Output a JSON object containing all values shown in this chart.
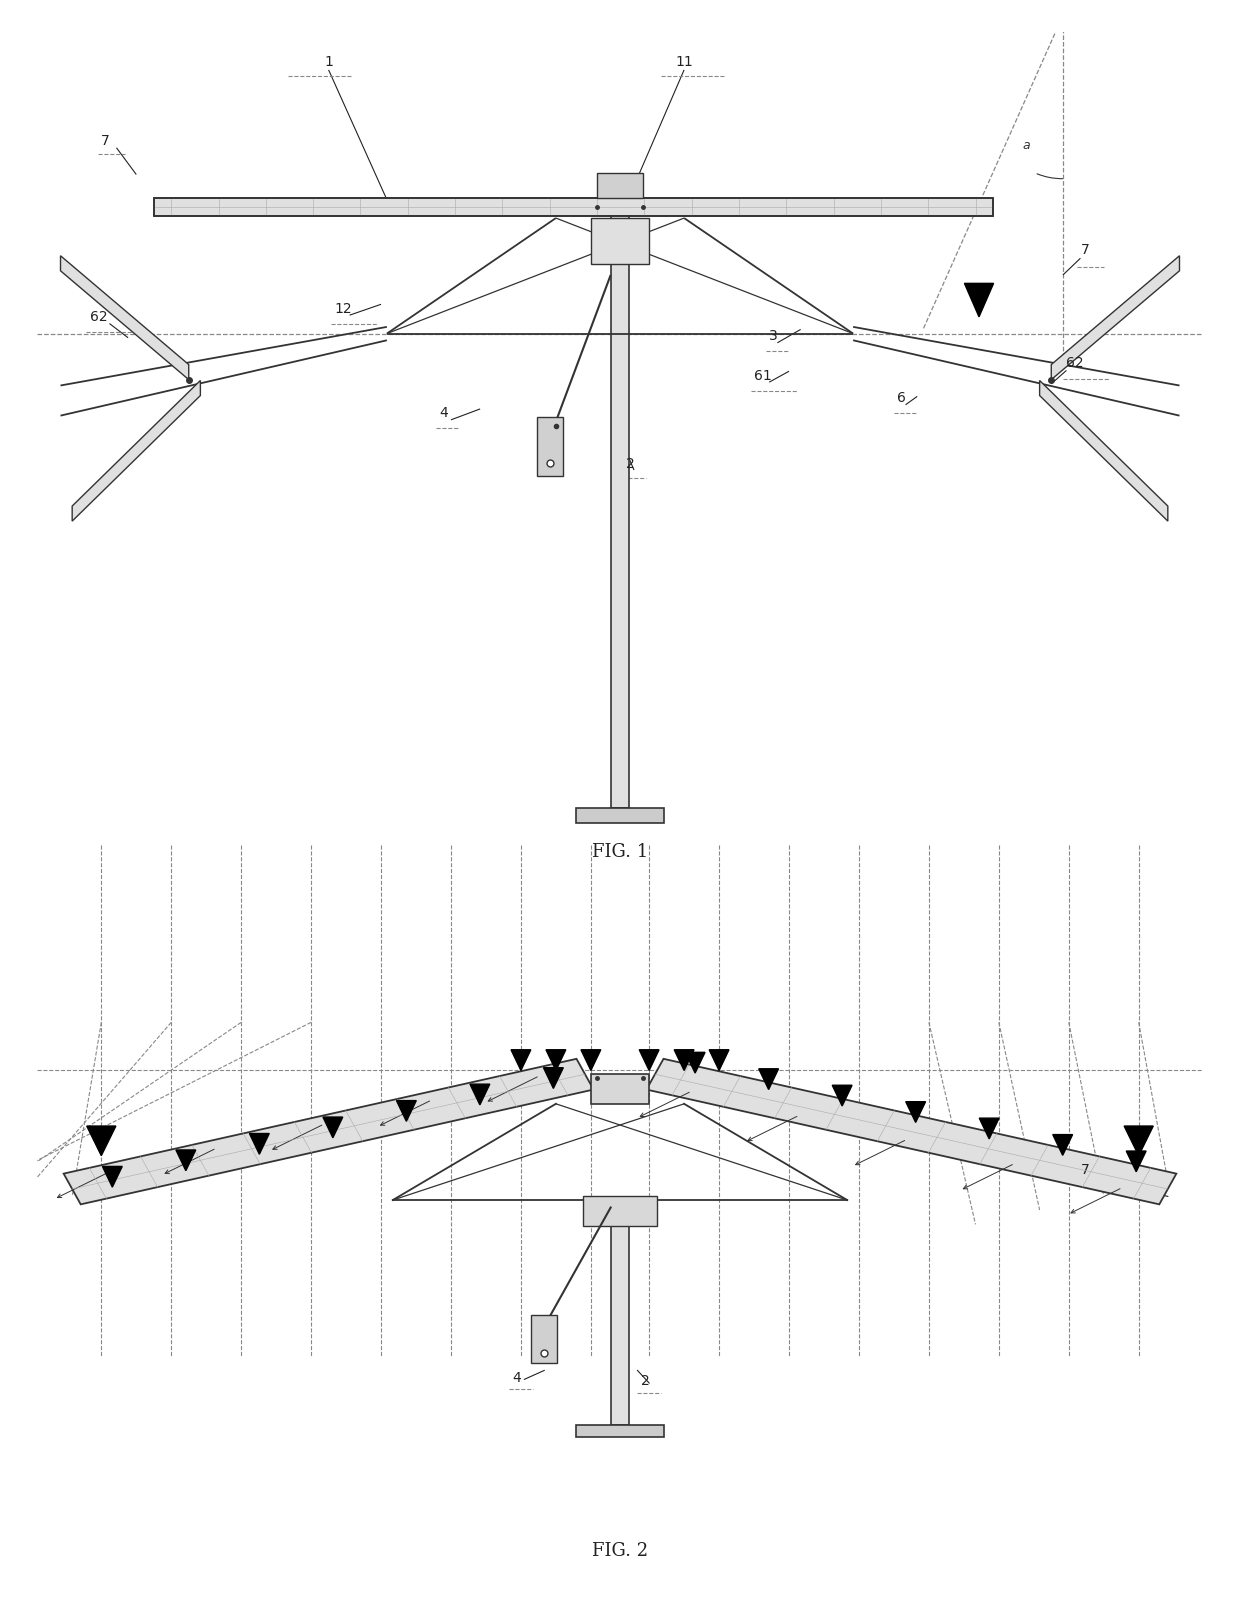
{
  "fig_width": 12.4,
  "fig_height": 16.1,
  "dpi": 100,
  "bg_color": "#ffffff",
  "lc": "#333333",
  "dc": "#888888",
  "fc_panel": "#e8e8e8",
  "fc_metal": "#d8d8d8",
  "fig1_title": "FIG. 1",
  "fig2_title": "FIG. 2"
}
